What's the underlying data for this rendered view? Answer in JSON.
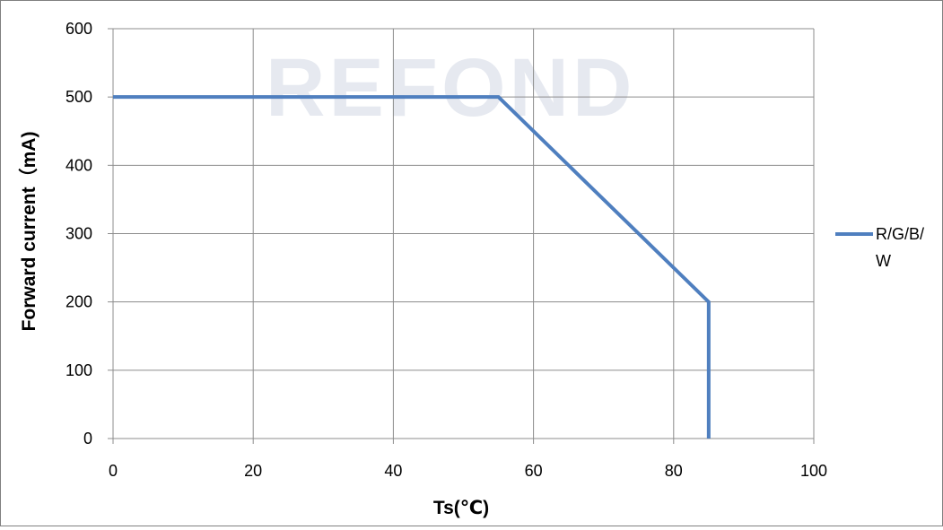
{
  "watermark": "REFOND",
  "chart_data": {
    "type": "line",
    "xlabel": "Ts(℃)",
    "ylabel": "Forward current（mA)",
    "xlim": [
      0,
      100
    ],
    "ylim": [
      0,
      600
    ],
    "xticks": [
      0,
      20,
      40,
      60,
      80,
      100
    ],
    "yticks": [
      0,
      100,
      200,
      300,
      400,
      500,
      600
    ],
    "grid": true,
    "legend_position": "right",
    "series": [
      {
        "name": "R/G/B/W",
        "name_lines": [
          "R/G/B/",
          "W"
        ],
        "color": "#4f7fbf",
        "x": [
          0,
          55,
          85,
          85
        ],
        "y": [
          500,
          500,
          200,
          0
        ]
      }
    ]
  }
}
